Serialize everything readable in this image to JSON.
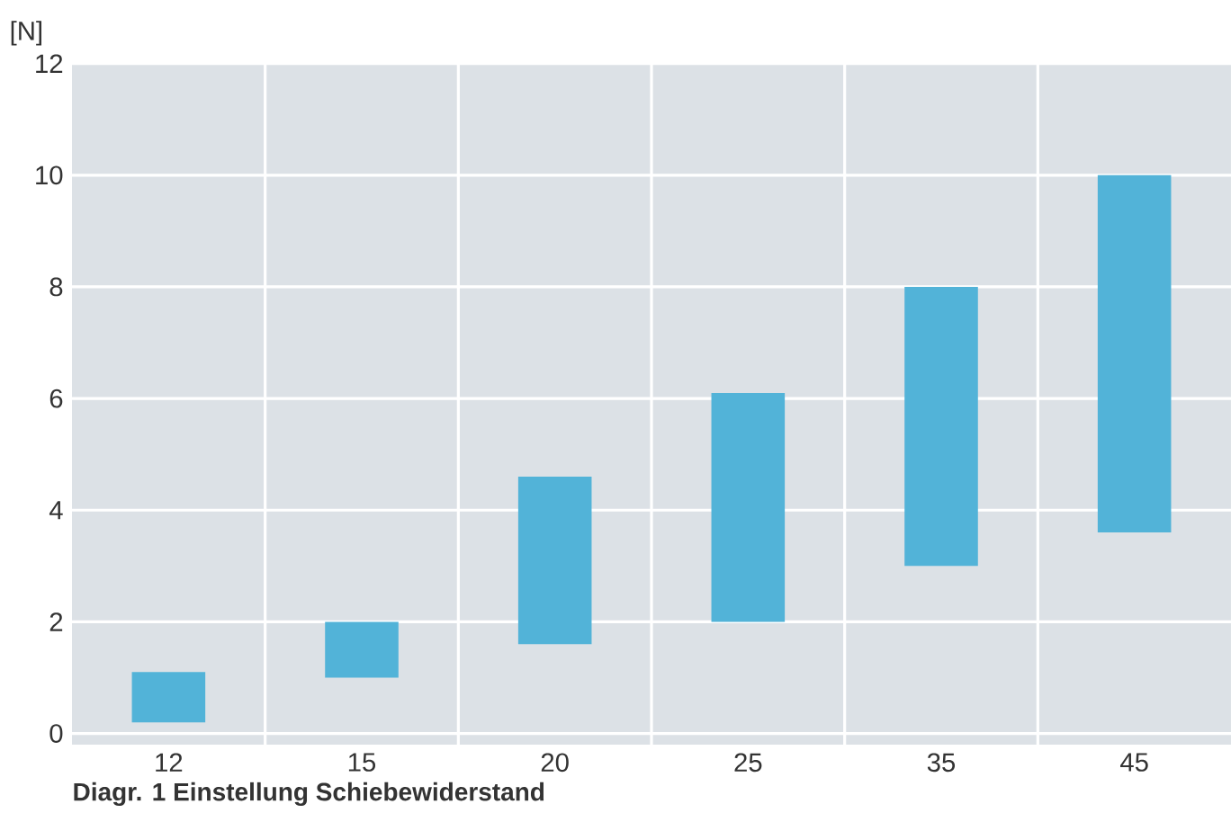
{
  "chart_data": {
    "type": "bar",
    "ylabel": "[N]",
    "categories": [
      "12",
      "15",
      "20",
      "25",
      "35",
      "45"
    ],
    "base": [
      0.2,
      1.0,
      1.6,
      2.0,
      3.0,
      3.6
    ],
    "values": [
      0.9,
      1.0,
      3.0,
      4.1,
      5.0,
      6.4
    ],
    "color": "#52b3d8",
    "ylim": [
      -0.2,
      12
    ],
    "yticks": [
      0,
      2,
      4,
      6,
      8,
      10,
      12
    ],
    "grid": true,
    "annotations": [
      "Diagr. 1 Einstellung Schiebewiderstand"
    ]
  }
}
